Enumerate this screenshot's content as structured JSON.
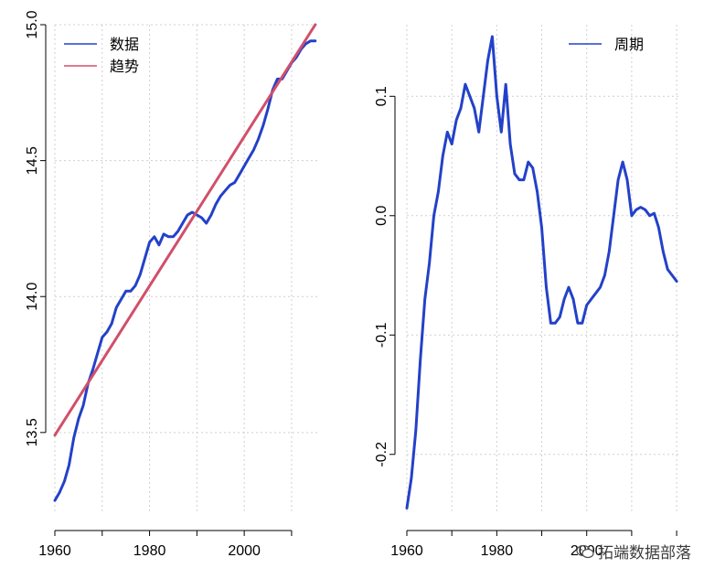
{
  "chart_data": [
    {
      "type": "line",
      "title": "",
      "xlabel": "",
      "ylabel": "",
      "xlim": [
        1960,
        2016
      ],
      "ylim": [
        13.2,
        15.0
      ],
      "xticks": [
        1960,
        1980,
        2000
      ],
      "yticks": [
        "13.5",
        "14.0",
        "14.5",
        "15.0"
      ],
      "grid": true,
      "legend_position": "top-left",
      "colors": {
        "数据": "#2341C8",
        "趋势": "#D14F6A"
      },
      "series": [
        {
          "name": "数据",
          "x": [
            1960,
            1961,
            1962,
            1963,
            1964,
            1965,
            1966,
            1967,
            1968,
            1969,
            1970,
            1971,
            1972,
            1973,
            1974,
            1975,
            1976,
            1977,
            1978,
            1979,
            1980,
            1981,
            1982,
            1983,
            1984,
            1985,
            1986,
            1987,
            1988,
            1989,
            1990,
            1991,
            1992,
            1993,
            1994,
            1995,
            1996,
            1997,
            1998,
            1999,
            2000,
            2001,
            2002,
            2003,
            2004,
            2005,
            2006,
            2007,
            2008,
            2009,
            2010,
            2011,
            2012,
            2013,
            2014,
            2015
          ],
          "y": [
            13.25,
            13.28,
            13.32,
            13.38,
            13.48,
            13.55,
            13.6,
            13.68,
            13.73,
            13.79,
            13.85,
            13.87,
            13.9,
            13.96,
            13.99,
            14.02,
            14.02,
            14.04,
            14.08,
            14.14,
            14.2,
            14.22,
            14.19,
            14.23,
            14.22,
            14.22,
            14.24,
            14.27,
            14.3,
            14.31,
            14.3,
            14.29,
            14.27,
            14.3,
            14.34,
            14.37,
            14.39,
            14.41,
            14.42,
            14.45,
            14.48,
            14.51,
            14.54,
            14.58,
            14.63,
            14.69,
            14.76,
            14.8,
            14.8,
            14.83,
            14.86,
            14.88,
            14.91,
            14.93,
            14.94,
            14.94
          ]
        },
        {
          "name": "趋势",
          "x": [
            1960,
            2015
          ],
          "y": [
            13.49,
            15.0
          ]
        }
      ]
    },
    {
      "type": "line",
      "title": "",
      "xlabel": "",
      "ylabel": "",
      "xlim": [
        1960,
        2021
      ],
      "ylim": [
        -0.25,
        0.16
      ],
      "xticks": [
        1960,
        1980,
        2000
      ],
      "yticks": [
        "-0.2",
        "-0.1",
        "0.0",
        "0.1"
      ],
      "grid": true,
      "legend_position": "top-right",
      "colors": {
        "周期": "#2341C8"
      },
      "series": [
        {
          "name": "周期",
          "x": [
            1960,
            1961,
            1962,
            1963,
            1964,
            1965,
            1966,
            1967,
            1968,
            1969,
            1970,
            1971,
            1972,
            1973,
            1974,
            1975,
            1976,
            1977,
            1978,
            1979,
            1980,
            1981,
            1982,
            1983,
            1984,
            1985,
            1986,
            1987,
            1988,
            1989,
            1990,
            1991,
            1992,
            1993,
            1994,
            1995,
            1996,
            1997,
            1998,
            1999,
            2000,
            2001,
            2002,
            2003,
            2004,
            2005,
            2006,
            2007,
            2008,
            2009,
            2010,
            2011,
            2012,
            2013,
            2014,
            2015,
            2016,
            2017,
            2018,
            2019,
            2020
          ],
          "y": [
            -0.245,
            -0.22,
            -0.18,
            -0.12,
            -0.07,
            -0.04,
            0.0,
            0.02,
            0.05,
            0.07,
            0.06,
            0.08,
            0.09,
            0.11,
            0.1,
            0.09,
            0.07,
            0.1,
            0.13,
            0.15,
            0.1,
            0.07,
            0.11,
            0.06,
            0.035,
            0.03,
            0.03,
            0.045,
            0.04,
            0.02,
            -0.01,
            -0.06,
            -0.09,
            -0.09,
            -0.085,
            -0.07,
            -0.06,
            -0.07,
            -0.09,
            -0.09,
            -0.075,
            -0.07,
            -0.065,
            -0.06,
            -0.05,
            -0.03,
            0.0,
            0.03,
            0.045,
            0.03,
            0.0,
            0.005,
            0.007,
            0.005,
            0.0,
            0.002,
            -0.01,
            -0.03,
            -0.045,
            -0.05,
            -0.055
          ]
        }
      ]
    }
  ],
  "watermark": {
    "text": "拓端数据部落"
  }
}
